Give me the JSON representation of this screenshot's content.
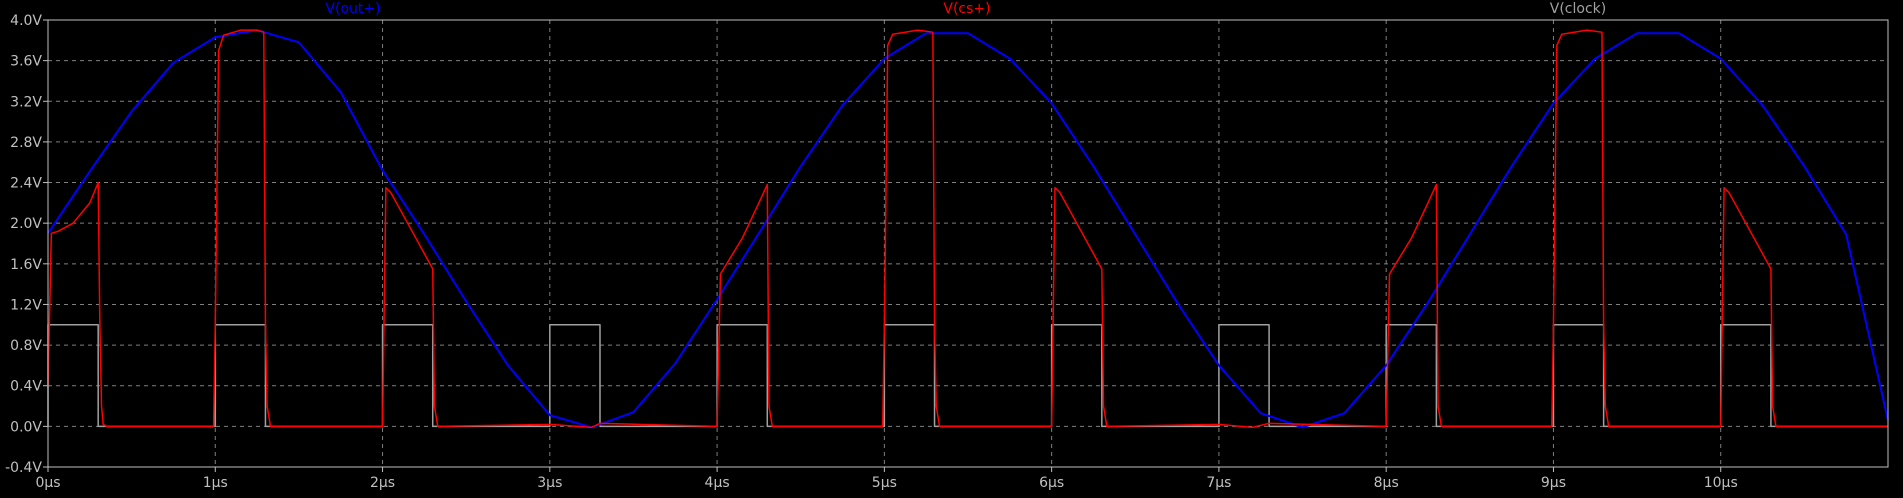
{
  "chart_data": {
    "type": "line",
    "title": "",
    "xlabel": "",
    "ylabel": "",
    "xlim": [
      0,
      11.0
    ],
    "ylim": [
      -0.4,
      4.0
    ],
    "grid": true,
    "legend_placement": "top",
    "x_tick_labels": [
      "0µs",
      "1µs",
      "2µs",
      "3µs",
      "4µs",
      "5µs",
      "6µs",
      "7µs",
      "8µs",
      "9µs",
      "10µs"
    ],
    "y_tick_labels": [
      "-0.4V",
      "0.0V",
      "0.4V",
      "0.8V",
      "1.2V",
      "1.6V",
      "2.0V",
      "2.4V",
      "2.8V",
      "3.2V",
      "3.6V",
      "4.0V"
    ],
    "x_ticks": [
      0,
      1,
      2,
      3,
      4,
      5,
      6,
      7,
      8,
      9,
      10
    ],
    "y_ticks": [
      -0.4,
      0.0,
      0.4,
      0.8,
      1.2,
      1.6,
      2.0,
      2.4,
      2.8,
      3.2,
      3.6,
      4.0
    ],
    "series": [
      {
        "name": "V(out+)",
        "color": "#0000ff",
        "x": [
          0.0,
          0.25,
          0.5,
          0.75,
          1.0,
          1.25,
          1.5,
          1.75,
          2.0,
          2.25,
          2.5,
          2.75,
          3.0,
          3.25,
          3.5,
          3.75,
          4.0,
          4.25,
          4.5,
          4.75,
          5.0,
          5.25,
          5.5,
          5.75,
          6.0,
          6.25,
          6.5,
          6.75,
          7.0,
          7.25,
          7.5,
          7.75,
          8.0,
          8.25,
          8.5,
          8.75,
          9.0,
          9.25,
          9.5,
          9.75,
          10.0,
          10.25,
          10.5,
          10.75,
          11.0
        ],
        "y": [
          1.9,
          2.51,
          3.1,
          3.58,
          3.83,
          3.9,
          3.78,
          3.29,
          2.52,
          1.89,
          1.23,
          0.6,
          0.11,
          -0.01,
          0.14,
          0.62,
          1.25,
          1.9,
          2.56,
          3.16,
          3.62,
          3.87,
          3.87,
          3.62,
          3.18,
          2.56,
          1.89,
          1.22,
          0.6,
          0.13,
          -0.01,
          0.13,
          0.6,
          1.22,
          1.89,
          2.56,
          3.18,
          3.62,
          3.87,
          3.87,
          3.62,
          3.16,
          2.56,
          1.89,
          0.06
        ]
      },
      {
        "name": "V(cs+)",
        "color": "#ff0000",
        "x": [
          0.0,
          0.02,
          0.06,
          0.15,
          0.25,
          0.3,
          0.31,
          0.32,
          0.33,
          0.35,
          0.99,
          1.0,
          1.02,
          1.05,
          1.15,
          1.2,
          1.25,
          1.29,
          1.3,
          1.31,
          1.33,
          2.0,
          2.02,
          2.05,
          2.15,
          2.25,
          2.3,
          2.31,
          2.33,
          3.0,
          3.25,
          3.3,
          4.0,
          4.02,
          4.15,
          4.25,
          4.3,
          4.31,
          4.33,
          4.99,
          5.0,
          5.02,
          5.05,
          5.2,
          5.29,
          5.3,
          5.31,
          5.33,
          6.0,
          6.02,
          6.05,
          6.15,
          6.25,
          6.3,
          6.31,
          6.33,
          7.0,
          7.2,
          7.3,
          8.0,
          8.02,
          8.15,
          8.25,
          8.3,
          8.31,
          8.33,
          8.99,
          9.0,
          9.02,
          9.05,
          9.2,
          9.29,
          9.3,
          9.31,
          9.33,
          10.0,
          10.02,
          10.05,
          10.15,
          10.25,
          10.3,
          10.31,
          10.33,
          11.0
        ],
        "y": [
          0.4,
          1.9,
          1.92,
          2.0,
          2.2,
          2.4,
          1.0,
          0.2,
          0.02,
          0.0,
          0.0,
          1.0,
          3.7,
          3.85,
          3.9,
          3.9,
          3.9,
          3.88,
          1.0,
          0.2,
          0.0,
          0.0,
          2.35,
          2.3,
          2.0,
          1.7,
          1.55,
          0.2,
          0.0,
          0.02,
          -0.01,
          0.03,
          0.0,
          1.5,
          1.85,
          2.2,
          2.38,
          0.2,
          0.0,
          0.0,
          1.0,
          3.75,
          3.86,
          3.9,
          3.88,
          1.0,
          0.2,
          0.0,
          0.0,
          2.35,
          2.3,
          2.0,
          1.7,
          1.55,
          0.2,
          0.0,
          0.02,
          -0.01,
          0.03,
          0.0,
          1.5,
          1.85,
          2.2,
          2.38,
          0.2,
          0.0,
          0.0,
          1.0,
          3.75,
          3.86,
          3.9,
          3.88,
          1.0,
          0.2,
          0.0,
          0.0,
          2.35,
          2.3,
          2.0,
          1.7,
          1.55,
          0.2,
          0.0,
          0.0
        ]
      },
      {
        "name": "V(clock)",
        "color": "#a0a0a0",
        "x": [
          0.0,
          0.0,
          0.3,
          0.3,
          1.0,
          1.0,
          1.3,
          1.3,
          2.0,
          2.0,
          2.3,
          2.3,
          3.0,
          3.0,
          3.3,
          3.3,
          4.0,
          4.0,
          4.3,
          4.3,
          5.0,
          5.0,
          5.3,
          5.3,
          6.0,
          6.0,
          6.3,
          6.3,
          7.0,
          7.0,
          7.3,
          7.3,
          8.0,
          8.0,
          8.3,
          8.3,
          9.0,
          9.0,
          9.3,
          9.3,
          10.0,
          10.0,
          10.3,
          10.3,
          11.0
        ],
        "y": [
          0,
          1,
          1,
          0,
          0,
          1,
          1,
          0,
          0,
          1,
          1,
          0,
          0,
          1,
          1,
          0,
          0,
          1,
          1,
          0,
          0,
          1,
          1,
          0,
          0,
          1,
          1,
          0,
          0,
          1,
          1,
          0,
          0,
          1,
          1,
          0,
          0,
          1,
          1,
          0,
          0,
          1,
          1,
          0,
          0
        ]
      }
    ]
  }
}
